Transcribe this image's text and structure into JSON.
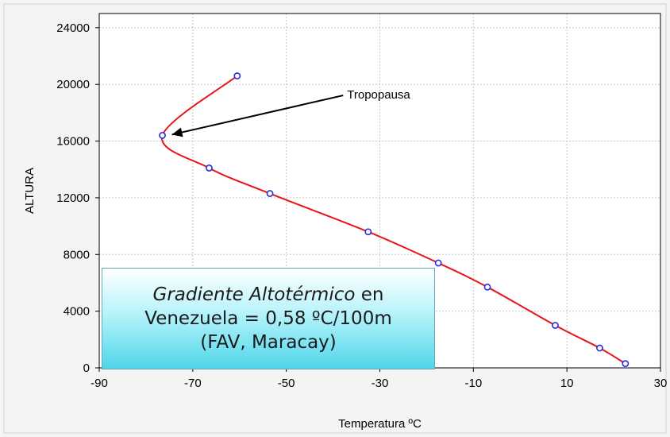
{
  "chart_data": {
    "type": "line",
    "title": "",
    "xlabel": "Temperatura ºC",
    "ylabel": "ALTURA",
    "xlim": [
      -90,
      30
    ],
    "ylim": [
      0,
      25000
    ],
    "xticks": [
      -90,
      -70,
      -50,
      -30,
      -10,
      10,
      30
    ],
    "yticks": [
      0,
      4000,
      8000,
      12000,
      16000,
      20000,
      24000
    ],
    "grid": true,
    "series": [
      {
        "name": "",
        "color": "#e8141a",
        "marker_color": "#2a2ae0",
        "points": [
          {
            "x": 22.5,
            "y": 300
          },
          {
            "x": 17,
            "y": 1400
          },
          {
            "x": 7.5,
            "y": 3000
          },
          {
            "x": -7,
            "y": 5700
          },
          {
            "x": -17.5,
            "y": 7400
          },
          {
            "x": -32.5,
            "y": 9600
          },
          {
            "x": -53.5,
            "y": 12300
          },
          {
            "x": -66.5,
            "y": 14100
          },
          {
            "x": -76.5,
            "y": 16400
          },
          {
            "x": -60.5,
            "y": 20600
          }
        ]
      }
    ],
    "annotations": [
      {
        "text": "Tropopausa",
        "target": {
          "x": -76.5,
          "y": 16400
        },
        "text_at": {
          "x": -37,
          "y": 19000
        }
      }
    ]
  },
  "info_box": {
    "line1_italic": "Gradiente Altotérmico",
    "line1_rest": " en",
    "line2": "Venezuela = 0,58 ºC/100m",
    "line3": "(FAV, Maracay)"
  }
}
